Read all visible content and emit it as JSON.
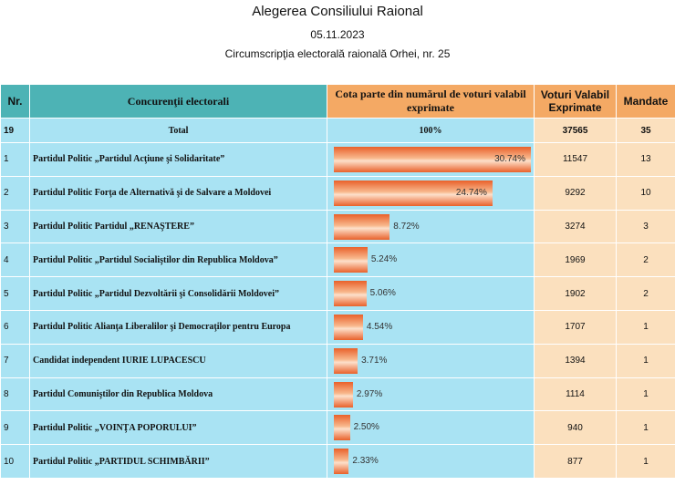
{
  "header": {
    "title": "Alegerea Consiliului Raional",
    "date": "05.11.2023",
    "district": "Circumscripţia electorală raională Orhei, nr. 25"
  },
  "table": {
    "columns": [
      "Nr.",
      "Concurenţii electorali",
      "Cota parte din numărul de voturi valabil exprimate",
      "Voturi Valabil Exprimate",
      "Mandate"
    ],
    "total": {
      "nr": 19,
      "party": "Total",
      "share": {
        "value": 100,
        "label": "100%"
      },
      "votes": 37565,
      "mandates": 35
    },
    "rows": [
      {
        "nr": 1,
        "party": "Partidul Politic „Partidul Acţiune şi Solidaritate”",
        "share": {
          "value": 30.74,
          "label": "30.74%"
        },
        "votes": 11547,
        "mandates": 13
      },
      {
        "nr": 2,
        "party": "Partidul Politic Forţa de Alternativă şi de Salvare a Moldovei",
        "share": {
          "value": 24.74,
          "label": "24.74%"
        },
        "votes": 9292,
        "mandates": 10
      },
      {
        "nr": 3,
        "party": "Partidul Politic Partidul „RENAŞTERE”",
        "share": {
          "value": 8.72,
          "label": "8.72%"
        },
        "votes": 3274,
        "mandates": 3
      },
      {
        "nr": 4,
        "party": "Partidul Politic „Partidul Socialiştilor din Republica Moldova”",
        "share": {
          "value": 5.24,
          "label": "5.24%"
        },
        "votes": 1969,
        "mandates": 2
      },
      {
        "nr": 5,
        "party": "Partidul Politic „Partidul Dezvoltării şi Consolidării Moldovei”",
        "share": {
          "value": 5.06,
          "label": "5.06%"
        },
        "votes": 1902,
        "mandates": 2
      },
      {
        "nr": 6,
        "party": "Partidul Politic Alianţa Liberalilor şi Democraţilor pentru Europa",
        "share": {
          "value": 4.54,
          "label": "4.54%"
        },
        "votes": 1707,
        "mandates": 1
      },
      {
        "nr": 7,
        "party": "Candidat independent IURIE LUPACESCU",
        "share": {
          "value": 3.71,
          "label": "3.71%"
        },
        "votes": 1394,
        "mandates": 1
      },
      {
        "nr": 8,
        "party": "Partidul Comuniştilor din Republica Moldova",
        "share": {
          "value": 2.97,
          "label": "2.97%"
        },
        "votes": 1114,
        "mandates": 1
      },
      {
        "nr": 9,
        "party": "Partidul Politic „VOINŢA POPORULUI”",
        "share": {
          "value": 2.5,
          "label": "2.50%"
        },
        "votes": 940,
        "mandates": 1
      },
      {
        "nr": 10,
        "party": "Partidul Politic „PARTIDUL SCHIMBĂRII”",
        "share": {
          "value": 2.33,
          "label": "2.33%"
        },
        "votes": 877,
        "mandates": 1
      }
    ]
  }
}
